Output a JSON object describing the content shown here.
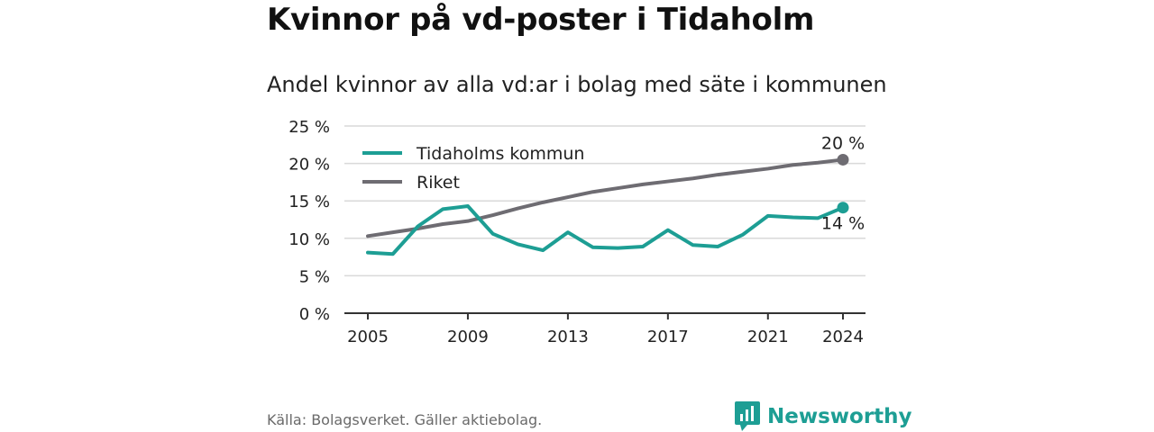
{
  "title": "Kvinnor på vd-poster i Tidaholm",
  "subtitle": "Andel kvinnor av alla vd:ar i bolag med säte i kommunen",
  "source": "Källa: Bolagsverket. Gäller aktiebolag.",
  "brand": {
    "name": "Newsworthy",
    "icon": "newsworthy-logo-icon",
    "color": "#1d9e94"
  },
  "chart_data": {
    "type": "line",
    "title": "",
    "xlabel": "",
    "ylabel": "",
    "x": [
      2005,
      2006,
      2007,
      2008,
      2009,
      2010,
      2011,
      2012,
      2013,
      2014,
      2015,
      2016,
      2017,
      2018,
      2019,
      2020,
      2021,
      2022,
      2023,
      2024
    ],
    "xticks": [
      2005,
      2009,
      2013,
      2017,
      2021,
      2024
    ],
    "xtick_labels": [
      "2005",
      "2009",
      "2013",
      "2017",
      "2021",
      "2024"
    ],
    "ylim": [
      0,
      25
    ],
    "yticks": [
      0,
      5,
      10,
      15,
      20,
      25
    ],
    "ytick_labels": [
      "0 %",
      "5 %",
      "10 %",
      "15 %",
      "20 %",
      "25 %"
    ],
    "grid": true,
    "legend_position": "top-left",
    "series": [
      {
        "name": "Tidaholms kommun",
        "color": "#1d9e94",
        "values": [
          8.1,
          7.9,
          11.6,
          13.9,
          14.3,
          10.6,
          9.2,
          8.4,
          10.8,
          8.8,
          8.7,
          8.9,
          11.1,
          9.1,
          8.9,
          10.5,
          13.0,
          12.8,
          12.7,
          14.1
        ],
        "end_label": "14 %"
      },
      {
        "name": "Riket",
        "color": "#6e6c72",
        "values": [
          10.3,
          10.8,
          11.3,
          11.9,
          12.3,
          13.1,
          14.0,
          14.8,
          15.5,
          16.2,
          16.7,
          17.2,
          17.6,
          18.0,
          18.5,
          18.9,
          19.3,
          19.8,
          20.1,
          20.5
        ],
        "end_label": "20 %"
      }
    ]
  }
}
